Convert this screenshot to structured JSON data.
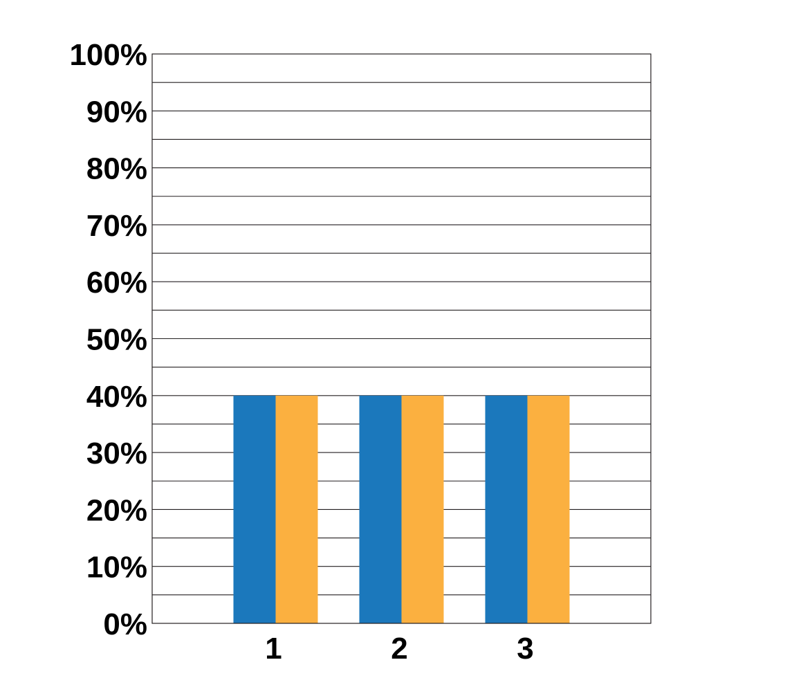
{
  "chart_data": {
    "type": "bar",
    "title": "",
    "xlabel": "",
    "ylabel": "",
    "categories": [
      "1",
      "2",
      "3"
    ],
    "series": [
      {
        "values": [
          40,
          40,
          40
        ],
        "color": "#1b78bc"
      },
      {
        "values": [
          40,
          40,
          40
        ],
        "color": "#fbb040"
      }
    ],
    "ylim": [
      0,
      100
    ],
    "y_ticks": [
      0,
      10,
      20,
      30,
      40,
      50,
      60,
      70,
      80,
      90,
      100
    ],
    "y_tick_labels": [
      "0%",
      "10%",
      "20%",
      "30%",
      "40%",
      "50%",
      "60%",
      "70%",
      "80%",
      "90%",
      "100%"
    ],
    "minor_gridline_step": 5,
    "grid": true,
    "legend": "none"
  }
}
